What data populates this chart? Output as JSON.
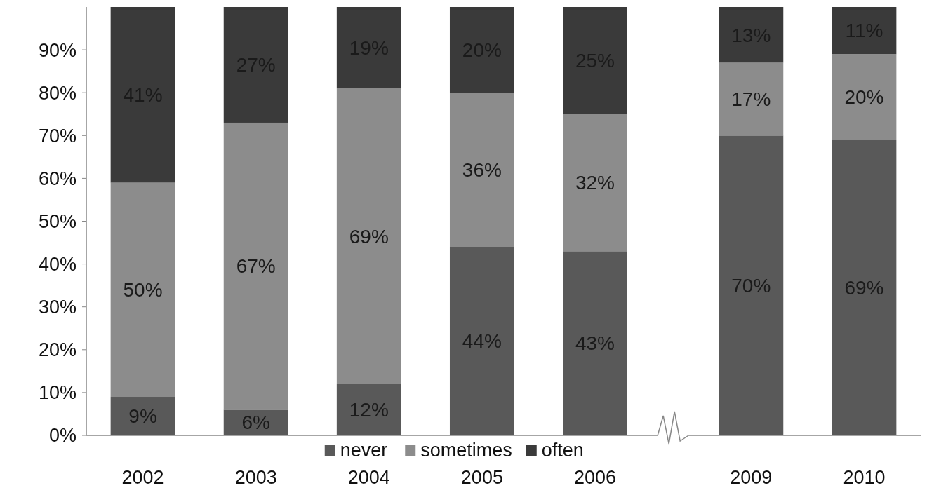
{
  "chart_data": {
    "type": "bar",
    "stacked": true,
    "categories": [
      "2002",
      "2003",
      "2004",
      "2005",
      "2006",
      null,
      "2009",
      "2010"
    ],
    "series": [
      {
        "name": "never",
        "color": "#595959",
        "values": [
          9,
          6,
          12,
          44,
          43,
          null,
          70,
          69
        ]
      },
      {
        "name": "sometimes",
        "color": "#8c8c8c",
        "values": [
          50,
          67,
          69,
          36,
          32,
          null,
          17,
          20
        ]
      },
      {
        "name": "often",
        "color": "#3a3a3a",
        "values": [
          41,
          27,
          19,
          20,
          25,
          null,
          13,
          11
        ]
      }
    ],
    "ylim": [
      0,
      100
    ],
    "yticks": [
      {
        "value": 0,
        "label": "0%"
      },
      {
        "value": 10,
        "label": "10%"
      },
      {
        "value": 20,
        "label": "20%"
      },
      {
        "value": 30,
        "label": "30%"
      },
      {
        "value": 40,
        "label": "40%"
      },
      {
        "value": 50,
        "label": "50%"
      },
      {
        "value": 60,
        "label": "60%"
      },
      {
        "value": 70,
        "label": "70%"
      },
      {
        "value": 80,
        "label": "80%"
      },
      {
        "value": 90,
        "label": "90%"
      }
    ],
    "value_labels": [
      [
        "9%",
        "6%",
        "12%",
        "44%",
        "43%",
        null,
        "70%",
        "69%"
      ],
      [
        "50%",
        "67%",
        "69%",
        "36%",
        "32%",
        null,
        "17%",
        "20%"
      ],
      [
        "41%",
        "27%",
        "19%",
        "20%",
        "25%",
        null,
        "13%",
        "11%"
      ]
    ],
    "grid": false,
    "legend": "bottom"
  }
}
